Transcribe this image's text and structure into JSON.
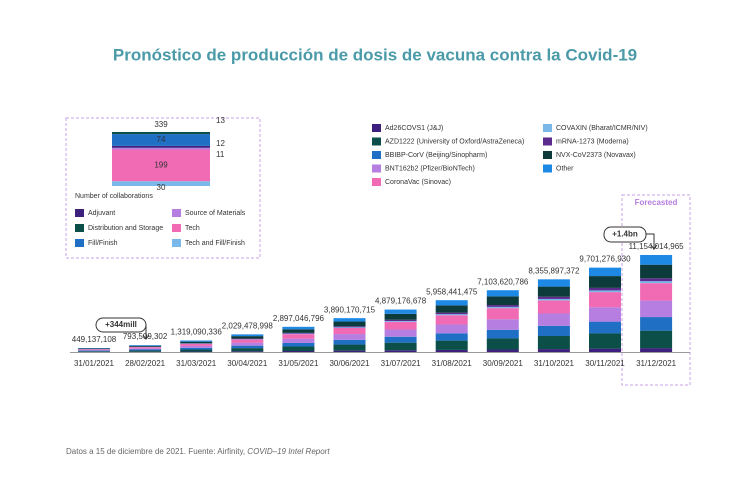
{
  "title": "Pronóstico de producción de dosis de vacuna contra la Covid-19",
  "footer": {
    "text": "Datos a 15 de diciembre de 2021. Fuente: Airfinity, ",
    "italic": "COVID–19 Intel Report"
  },
  "chart_data": [
    {
      "type": "stacked_bar",
      "categories": [
        "31/01/2021",
        "28/02/2021",
        "31/03/2021",
        "30/04/2021",
        "31/05/2021",
        "30/06/2021",
        "31/07/2021",
        "31/08/2021",
        "30/09/2021",
        "31/10/2021",
        "30/11/2021",
        "31/12/2021"
      ],
      "totals": [
        449137108,
        793509302,
        1319090336,
        2029478998,
        2897046796,
        3890170715,
        4879176678,
        5958441475,
        7103620786,
        8355897372,
        9701276930,
        11154014965
      ],
      "value_labels": [
        "449,137,108",
        "793,509,302",
        "1,319,090,336",
        "2,029,478,998",
        "2,897,046,796",
        "3,890,170,715",
        "4,879,176,678",
        "5,958,441,475",
        "7,103,620,786",
        "8,355,897,372",
        "9,701,276,930",
        "11,154,014,965"
      ],
      "annotations": [
        "+344mill",
        "+1.4bn",
        "Forecasted"
      ],
      "series": [
        {
          "name": "Ad26COVS1 (J&J)",
          "color": "#3d1f7d",
          "values": [
            18000000.0,
            32000000.0,
            53000000.0,
            81000000.0,
            116000000.0,
            156000000.0,
            195000000.0,
            238000000.0,
            284000000.0,
            334000000.0,
            388000000.0,
            446000000.0
          ]
        },
        {
          "name": "AZD1222 (University of Oxford/AstraZeneca)",
          "color": "#0b4f48",
          "values": [
            81000000.0,
            143000000.0,
            237000000.0,
            365000000.0,
            521000000.0,
            700000000.0,
            878000000.0,
            1072000000.0,
            1279000000.0,
            1504000000.0,
            1746000000.0,
            2008000000.0
          ]
        },
        {
          "name": "BBIBP-CorV (Beijing/Sinopharm)",
          "color": "#1f6fc5",
          "values": [
            63000000.0,
            111000000.0,
            185000000.0,
            284000000.0,
            406000000.0,
            545000000.0,
            683000000.0,
            834000000.0,
            995000000.0,
            1170000000.0,
            1358000000.0,
            1562000000.0
          ]
        },
        {
          "name": "BNT162b2 (Pfizer/BioNTech)",
          "color": "#b57ee0",
          "values": [
            76000000.0,
            135000000.0,
            224000000.0,
            345000000.0,
            492000000.0,
            661000000.0,
            829000000.0,
            1013000000.0,
            1208000000.0,
            1421000000.0,
            1649000000.0,
            1896000000.0
          ]
        },
        {
          "name": "CoronaVac (Sinovac)",
          "color": "#f06bb4",
          "values": [
            81000000.0,
            143000000.0,
            237000000.0,
            365000000.0,
            521000000.0,
            700000000.0,
            878000000.0,
            1072000000.0,
            1279000000.0,
            1504000000.0,
            1746000000.0,
            2008000000.0
          ]
        },
        {
          "name": "COVAXIN (Bharat/ICMR/NIV)",
          "color": "#7ab8ea",
          "values": [
            9000000.0,
            16000000.0,
            26000000.0,
            41000000.0,
            58000000.0,
            78000000.0,
            98000000.0,
            119000000.0,
            142000000.0,
            167000000.0,
            194000000.0,
            223000000.0
          ]
        },
        {
          "name": "mRNA-1273 (Moderna)",
          "color": "#5b2c8e",
          "values": [
            13000000.0,
            24000000.0,
            40000000.0,
            61000000.0,
            87000000.0,
            117000000.0,
            146000000.0,
            179000000.0,
            213000000.0,
            251000000.0,
            291000000.0,
            335000000.0
          ]
        },
        {
          "name": "NVX-CoV2373 (Novavax)",
          "color": "#0d3a3a",
          "values": [
            63000000.0,
            111000000.0,
            185000000.0,
            284000000.0,
            406000000.0,
            545000000.0,
            683000000.0,
            834000000.0,
            995000000.0,
            1170000000.0,
            1358000000.0,
            1562000000.0
          ]
        },
        {
          "name": "Other",
          "color": "#1e88e5",
          "values": [
            45000000.0,
            79000000.0,
            132000000.0,
            203000000.0,
            290000000.0,
            389000000.0,
            488000000.0,
            596000000.0,
            710000000.0,
            836000000.0,
            970000000.0,
            1115000000.0
          ]
        }
      ]
    },
    {
      "type": "stacked_column",
      "x_label": "Number of collaborations",
      "total": 339,
      "series": [
        {
          "name": "Tech and Fill/Finish",
          "color": "#7ab8ea",
          "values": [
            30
          ]
        },
        {
          "name": "Tech",
          "color": "#f06bb4",
          "values": [
            199
          ]
        },
        {
          "name": "Source of Materials",
          "color": "#b57ee0",
          "values": [
            11
          ]
        },
        {
          "name": "Adjuvant",
          "color": "#3d1f7d",
          "values": [
            12
          ]
        },
        {
          "name": "Fill/Finish",
          "color": "#1f6fc5",
          "values": [
            74
          ]
        },
        {
          "name": "Distribution and Storage",
          "color": "#0b4f48",
          "values": [
            13
          ]
        }
      ]
    }
  ]
}
